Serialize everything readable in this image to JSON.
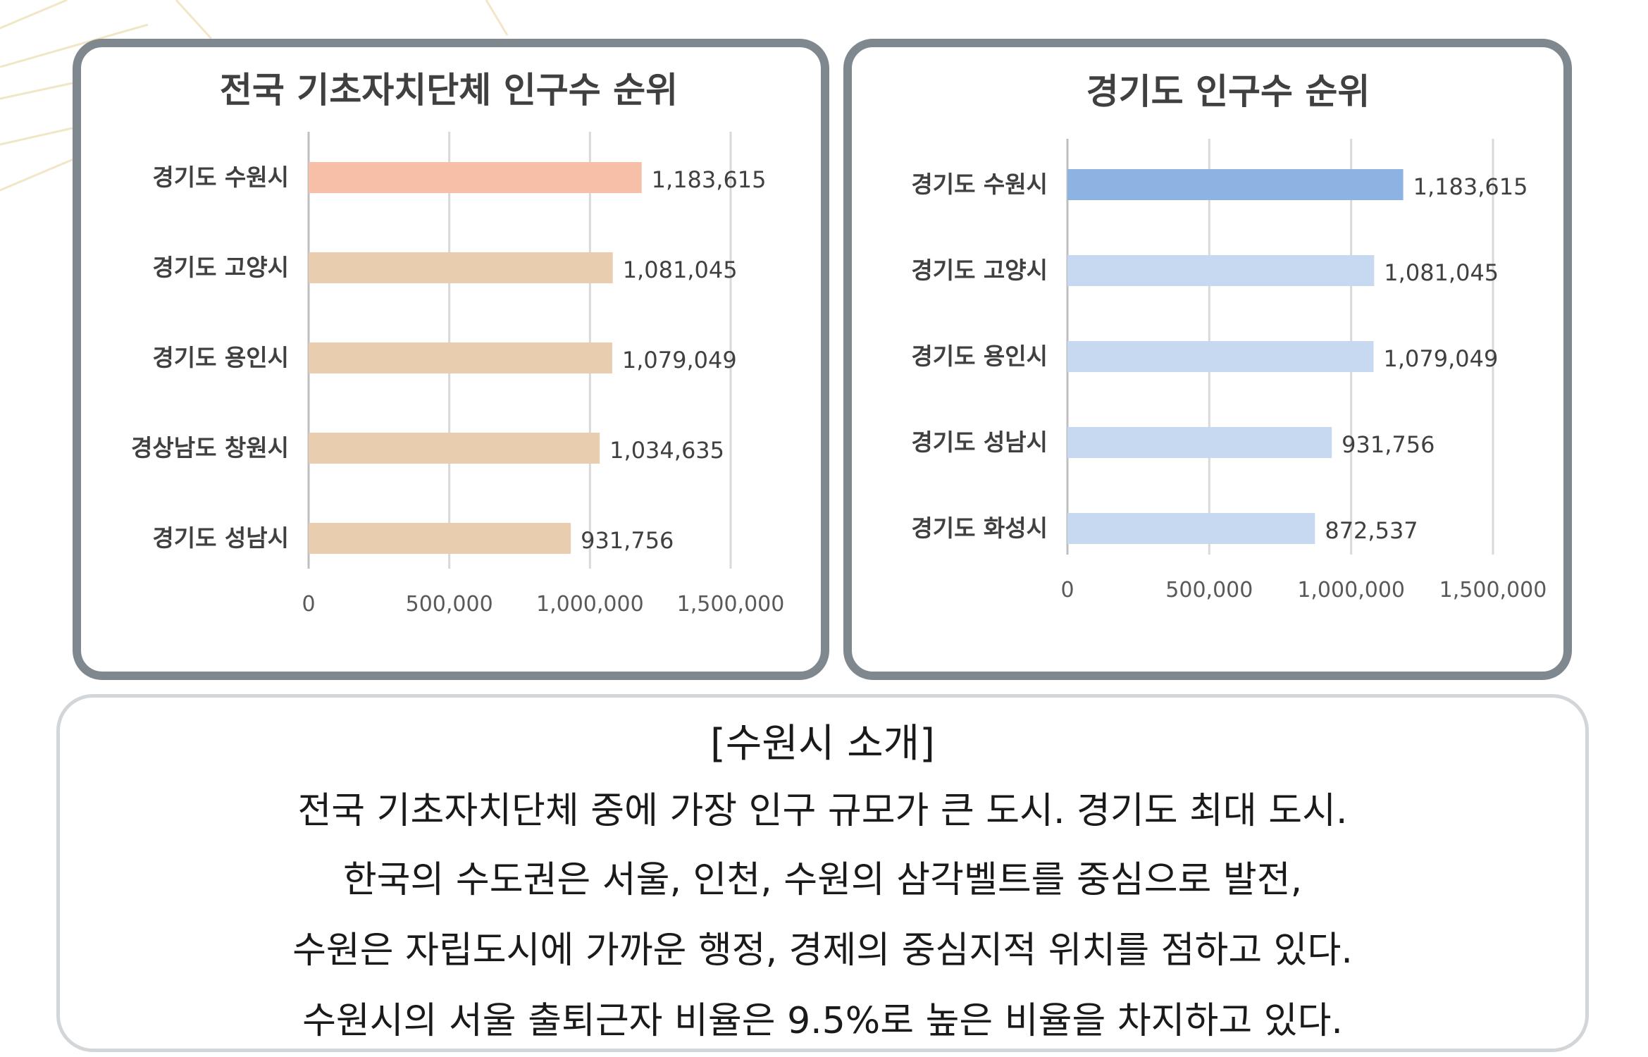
{
  "chart_data": [
    {
      "type": "bar",
      "orientation": "horizontal",
      "title": "전국 기초자치단체 인구수 순위",
      "categories": [
        "경기도 수원시",
        "경기도 고양시",
        "경기도 용인시",
        "경상남도 창원시",
        "경기도 성남시"
      ],
      "values": [
        1183615,
        1081045,
        1079049,
        1034635,
        931756
      ],
      "data_labels": [
        "1,183,615",
        "1,081,045",
        "1,079,049",
        "1,034,635",
        "931,756"
      ],
      "xlim": [
        0,
        1500000
      ],
      "ticks": [
        "0",
        "500,000",
        "1,000,000",
        "1,500,000"
      ],
      "grid": true,
      "colors": {
        "highlight": "#F8BFA8",
        "default": "#E8CDAE"
      }
    },
    {
      "type": "bar",
      "orientation": "horizontal",
      "title": "경기도 인구수 순위",
      "categories": [
        "경기도 수원시",
        "경기도 고양시",
        "경기도 용인시",
        "경기도 성남시",
        "경기도 화성시"
      ],
      "values": [
        1183615,
        1081045,
        1079049,
        931756,
        872537
      ],
      "data_labels": [
        "1,183,615",
        "1,081,045",
        "1,079,049",
        "931,756",
        "872,537"
      ],
      "xlim": [
        0,
        1500000
      ],
      "ticks": [
        "0",
        "500,000",
        "1,000,000",
        "1,500,000"
      ],
      "grid": true,
      "colors": {
        "highlight": "#8DB3E2",
        "default": "#C6D9F1"
      }
    }
  ],
  "intro": {
    "title": "[수원시 소개]",
    "lines": [
      "전국 기초자치단체 중에 가장 인구 규모가 큰 도시. 경기도 최대 도시.",
      "한국의 수도권은 서울, 인천, 수원의 삼각벨트를 중심으로 발전,",
      "수원은 자립도시에 가까운 행정, 경제의 중심지적 위치를 점하고 있다.",
      "수원시의 서울 출퇴근자 비율은 9.5%로 높은 비율을 차지하고 있다."
    ]
  }
}
